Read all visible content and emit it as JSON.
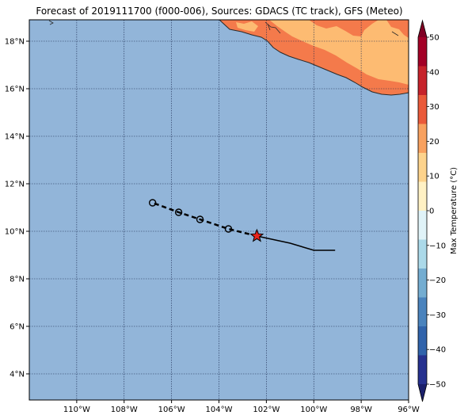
{
  "title": "Forecast of 2019111700 (f000-006), Sources: GDACS (TC track), GFS (Meteo)",
  "map": {
    "lon_range": [
      -112,
      -96
    ],
    "lat_range": [
      2.9,
      18.9
    ],
    "colors": {
      "ocean": "#92b5d9",
      "land_warm": "#fdbb72",
      "land_hot": "#f47a4b",
      "coast": "#2a2a2a",
      "grid": "#1a2a50"
    },
    "lon_ticks": [
      -110,
      -108,
      -106,
      -104,
      -102,
      -100,
      -98,
      -96
    ],
    "lon_tick_labels": [
      "110°W",
      "108°W",
      "106°W",
      "104°W",
      "102°W",
      "100°W",
      "98°W",
      "96°W"
    ],
    "lat_ticks": [
      4,
      6,
      8,
      10,
      12,
      14,
      16,
      18
    ],
    "lat_tick_labels": [
      "4°N",
      "6°N",
      "8°N",
      "10°N",
      "12°N",
      "14°N",
      "16°N",
      "18°N"
    ]
  },
  "track": {
    "observed": [
      [
        -99.1,
        9.2
      ],
      [
        -100.0,
        9.2
      ],
      [
        -101.0,
        9.5
      ],
      [
        -102.4,
        9.8
      ]
    ],
    "forecast": [
      [
        -102.4,
        9.8
      ],
      [
        -103.6,
        10.1
      ],
      [
        -104.8,
        10.5
      ],
      [
        -105.7,
        10.8
      ],
      [
        -106.8,
        11.2
      ]
    ],
    "forecast_points": [
      [
        -103.6,
        10.1
      ],
      [
        -104.8,
        10.5
      ],
      [
        -105.7,
        10.8
      ],
      [
        -106.8,
        11.2
      ]
    ],
    "current_position": [
      -102.4,
      9.8
    ],
    "star_color": "#e8241c"
  },
  "colorbar": {
    "label": "Max Temperature (°C)",
    "min": -50,
    "max": 50,
    "tick_values": [
      -50,
      -40,
      -30,
      -20,
      -10,
      0,
      10,
      20,
      30,
      40,
      50
    ],
    "tick_labels": [
      "−50",
      "−40",
      "−30",
      "−20",
      "−10",
      "0",
      "10",
      "20",
      "30",
      "40",
      "50"
    ],
    "low_extend_color": "#1a1f6b",
    "high_extend_color": "#7f0023",
    "colors": [
      "#26318f",
      "#3063ab",
      "#4a83bd",
      "#74add1",
      "#abd9e9",
      "#e0f3f8",
      "#fff1c4",
      "#fdd38c",
      "#f8a15f",
      "#ea5a3a",
      "#c6232b",
      "#a20026"
    ]
  }
}
